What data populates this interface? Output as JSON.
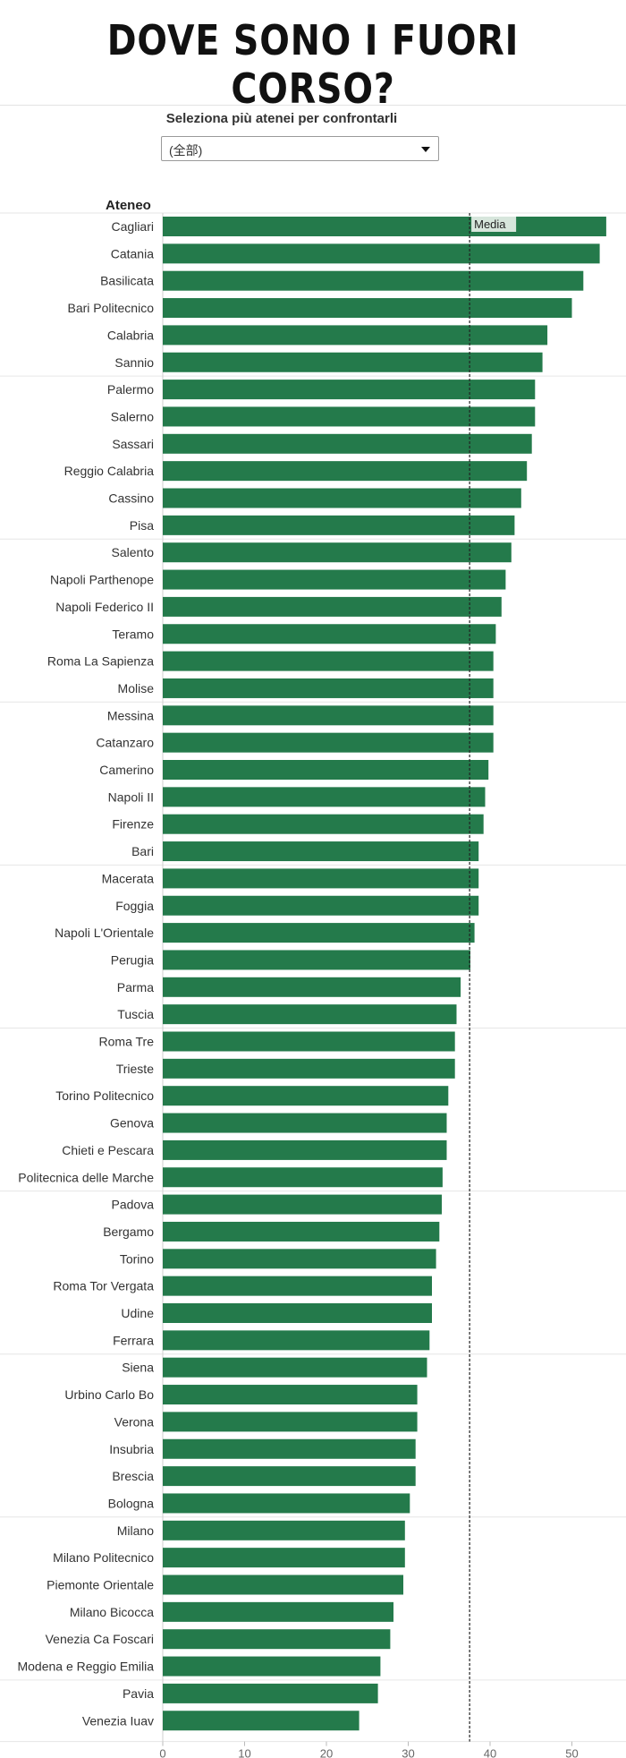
{
  "header": {
    "title": "DOVE SONO I FUORI CORSO?"
  },
  "filter": {
    "label": "Seleziona più atenei per confrontarli",
    "selected_value": "(全部)"
  },
  "colors": {
    "bar": "#247a4b",
    "reference_line": "#222222",
    "media_label_bg": "#d7e6dc"
  },
  "chart_data": {
    "type": "bar",
    "orientation": "horizontal",
    "category_header": "Ateneo",
    "categories": [
      "Cagliari",
      "Catania",
      "Basilicata",
      "Bari Politecnico",
      "Calabria",
      "Sannio",
      "Palermo",
      "Salerno",
      "Sassari",
      "Reggio Calabria",
      "Cassino",
      "Pisa",
      "Salento",
      "Napoli Parthenope",
      "Napoli Federico II",
      "Teramo",
      "Roma La Sapienza",
      "Molise",
      "Messina",
      "Catanzaro",
      "Camerino",
      "Napoli II",
      "Firenze",
      "Bari",
      "Macerata",
      "Foggia",
      "Napoli L'Orientale",
      "Perugia",
      "Parma",
      "Tuscia",
      "Roma Tre",
      "Trieste",
      "Torino Politecnico",
      "Genova",
      "Chieti e Pescara",
      "Politecnica delle Marche",
      "Padova",
      "Bergamo",
      "Torino",
      "Roma Tor Vergata",
      "Udine",
      "Ferrara",
      "Siena",
      "Urbino Carlo Bo",
      "Verona",
      "Insubria",
      "Brescia",
      "Bologna",
      "Milano",
      "Milano Politecnico",
      "Piemonte Orientale",
      "Milano Bicocca",
      "Venezia Ca Foscari",
      "Modena e Reggio Emilia",
      "Pavia",
      "Venezia Iuav"
    ],
    "values": [
      54.2,
      53.4,
      51.4,
      50.0,
      47.0,
      46.4,
      45.5,
      45.5,
      45.1,
      44.5,
      43.8,
      43.0,
      42.6,
      41.9,
      41.4,
      40.7,
      40.4,
      40.4,
      40.4,
      40.4,
      39.8,
      39.4,
      39.2,
      38.6,
      38.6,
      38.6,
      38.1,
      37.6,
      36.4,
      35.9,
      35.7,
      35.7,
      34.9,
      34.7,
      34.7,
      34.2,
      34.1,
      33.8,
      33.4,
      32.9,
      32.9,
      32.6,
      32.3,
      31.1,
      31.1,
      30.9,
      30.9,
      30.2,
      29.6,
      29.6,
      29.4,
      28.2,
      27.8,
      26.6,
      26.3,
      24.0
    ],
    "xlim": [
      0,
      55
    ],
    "x_ticks": [
      0,
      10,
      20,
      30,
      40,
      50
    ],
    "reference_line": {
      "label": "Media",
      "value": 37.5
    },
    "grid": false
  }
}
